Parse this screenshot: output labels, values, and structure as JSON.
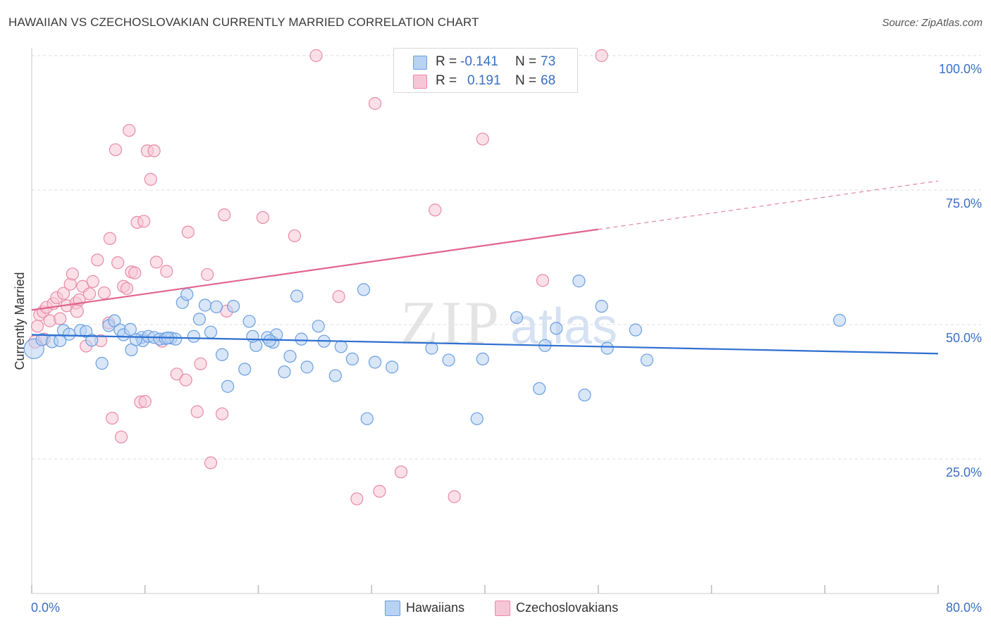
{
  "title": "HAWAIIAN VS CZECHOSLOVAKIAN CURRENTLY MARRIED CORRELATION CHART",
  "source": "Source: ZipAtlas.com",
  "watermark": {
    "zip": "ZIP",
    "atlas": "atlas"
  },
  "colors": {
    "blue_fill": "#b8d2f3",
    "blue_stroke": "#6a9fe0",
    "blue_line": "#2d6fd0",
    "pink_fill": "#f7c6d6",
    "pink_stroke": "#e98aa8",
    "pink_line": "#e0648c",
    "axis_text": "#3a6fc4",
    "grid": "#dddddd"
  },
  "legend": {
    "rows": [
      {
        "r_label": "R =",
        "r_value": "-0.141",
        "n_label": "N =",
        "n_value": "73",
        "series": "Hawaiians"
      },
      {
        "r_label": "R =",
        "r_value": "0.191",
        "n_label": "N =",
        "n_value": "68",
        "series": "Czechoslovakians"
      }
    ]
  },
  "bottom_legend": [
    "Hawaiians",
    "Czechoslovakians"
  ],
  "chart_data": {
    "type": "scatter",
    "xlabel": "",
    "ylabel": "Currently Married",
    "xlim": [
      0,
      80
    ],
    "ylim": [
      0,
      100
    ],
    "x_tick_labels": [
      "0.0%",
      "80.0%"
    ],
    "y_tick_labels": [
      "100.0%",
      "75.0%",
      "50.0%",
      "25.0%"
    ],
    "y_ticks": [
      100,
      75,
      50,
      25
    ],
    "grid": true,
    "legend_position": "top-center",
    "series": [
      {
        "name": "Hawaiians",
        "points": [
          [
            0.2,
            45.5
          ],
          [
            0.9,
            47.2
          ],
          [
            1.8,
            46.8
          ],
          [
            2.8,
            48.9
          ],
          [
            3.3,
            48.2
          ],
          [
            4.3,
            48.9
          ],
          [
            4.8,
            48.7
          ],
          [
            5.3,
            47.1
          ],
          [
            6.2,
            42.8
          ],
          [
            6.8,
            49.8
          ],
          [
            7.3,
            50.7
          ],
          [
            7.8,
            49.0
          ],
          [
            8.1,
            48.1
          ],
          [
            8.7,
            49.1
          ],
          [
            8.8,
            45.3
          ],
          [
            9.7,
            47.6
          ],
          [
            9.8,
            47.0
          ],
          [
            10.3,
            47.8
          ],
          [
            10.8,
            47.6
          ],
          [
            11.3,
            47.3
          ],
          [
            11.8,
            47.4
          ],
          [
            12.3,
            47.5
          ],
          [
            12.7,
            47.3
          ],
          [
            13.3,
            54.1
          ],
          [
            13.7,
            55.6
          ],
          [
            14.3,
            47.8
          ],
          [
            14.8,
            51.0
          ],
          [
            15.3,
            53.6
          ],
          [
            15.8,
            48.6
          ],
          [
            16.3,
            53.3
          ],
          [
            16.8,
            44.4
          ],
          [
            17.3,
            38.5
          ],
          [
            17.8,
            53.4
          ],
          [
            18.8,
            41.7
          ],
          [
            19.2,
            50.6
          ],
          [
            19.8,
            46.1
          ],
          [
            20.8,
            47.6
          ],
          [
            21.3,
            46.7
          ],
          [
            21.6,
            48.1
          ],
          [
            22.3,
            41.2
          ],
          [
            22.8,
            44.1
          ],
          [
            23.4,
            55.3
          ],
          [
            23.8,
            47.3
          ],
          [
            24.3,
            42.1
          ],
          [
            25.3,
            49.7
          ],
          [
            25.8,
            46.9
          ],
          [
            26.8,
            40.5
          ],
          [
            27.3,
            45.9
          ],
          [
            28.3,
            43.6
          ],
          [
            29.3,
            56.5
          ],
          [
            29.6,
            32.5
          ],
          [
            30.3,
            43.0
          ],
          [
            31.8,
            42.1
          ],
          [
            35.3,
            45.6
          ],
          [
            36.8,
            43.4
          ],
          [
            39.3,
            32.5
          ],
          [
            39.8,
            43.6
          ],
          [
            42.8,
            51.3
          ],
          [
            44.8,
            38.1
          ],
          [
            45.3,
            46.1
          ],
          [
            46.3,
            49.3
          ],
          [
            48.3,
            58.1
          ],
          [
            48.8,
            36.9
          ],
          [
            50.3,
            53.4
          ],
          [
            50.8,
            45.6
          ],
          [
            53.3,
            49.0
          ],
          [
            54.3,
            43.4
          ],
          [
            71.3,
            50.8
          ],
          [
            2.5,
            47.0
          ],
          [
            9.2,
            47.2
          ],
          [
            12.0,
            47.5
          ],
          [
            21.0,
            47.0
          ],
          [
            19.5,
            47.8
          ]
        ]
      },
      {
        "name": "Czechoslovakians",
        "points": [
          [
            0.3,
            46.8
          ],
          [
            0.7,
            51.8
          ],
          [
            1.0,
            52.4
          ],
          [
            1.3,
            53.2
          ],
          [
            1.6,
            50.7
          ],
          [
            1.9,
            53.9
          ],
          [
            2.2,
            55.0
          ],
          [
            2.5,
            51.1
          ],
          [
            2.8,
            55.8
          ],
          [
            3.1,
            53.5
          ],
          [
            3.4,
            57.5
          ],
          [
            3.6,
            59.4
          ],
          [
            3.9,
            54.0
          ],
          [
            4.2,
            54.6
          ],
          [
            4.5,
            57.1
          ],
          [
            4.8,
            46.0
          ],
          [
            5.1,
            55.7
          ],
          [
            5.4,
            58.0
          ],
          [
            5.8,
            62.0
          ],
          [
            6.1,
            47.0
          ],
          [
            6.4,
            55.9
          ],
          [
            6.8,
            50.3
          ],
          [
            6.9,
            66.0
          ],
          [
            7.1,
            32.6
          ],
          [
            7.4,
            82.5
          ],
          [
            7.6,
            61.5
          ],
          [
            7.9,
            29.1
          ],
          [
            8.1,
            57.1
          ],
          [
            8.4,
            56.7
          ],
          [
            8.6,
            86.1
          ],
          [
            8.8,
            59.8
          ],
          [
            9.1,
            59.6
          ],
          [
            9.3,
            69.0
          ],
          [
            9.6,
            35.6
          ],
          [
            9.9,
            69.2
          ],
          [
            10.0,
            35.7
          ],
          [
            10.2,
            82.3
          ],
          [
            10.5,
            77.0
          ],
          [
            10.8,
            82.3
          ],
          [
            11.0,
            61.6
          ],
          [
            11.5,
            46.9
          ],
          [
            11.9,
            59.9
          ],
          [
            12.8,
            40.8
          ],
          [
            13.6,
            39.7
          ],
          [
            13.8,
            67.2
          ],
          [
            14.6,
            33.8
          ],
          [
            14.9,
            42.7
          ],
          [
            15.5,
            59.3
          ],
          [
            15.8,
            24.3
          ],
          [
            16.8,
            33.4
          ],
          [
            17.0,
            70.4
          ],
          [
            17.2,
            52.5
          ],
          [
            20.4,
            69.9
          ],
          [
            23.2,
            66.5
          ],
          [
            25.1,
            100.0
          ],
          [
            27.1,
            55.2
          ],
          [
            28.7,
            17.6
          ],
          [
            30.3,
            91.1
          ],
          [
            30.7,
            19.0
          ],
          [
            32.6,
            22.6
          ],
          [
            35.6,
            71.3
          ],
          [
            37.3,
            18.0
          ],
          [
            39.8,
            84.5
          ],
          [
            45.1,
            58.2
          ],
          [
            50.3,
            100.0
          ],
          [
            4.0,
            52.5
          ],
          [
            1.1,
            47.3
          ],
          [
            0.5,
            49.7
          ]
        ]
      }
    ],
    "trend_lines": [
      {
        "series": "Hawaiians",
        "x": [
          0,
          80
        ],
        "y": [
          48.1,
          44.6
        ],
        "style": "solid"
      },
      {
        "series": "Czechoslovakians",
        "x": [
          0,
          50
        ],
        "y": [
          52.7,
          67.7
        ],
        "style": "solid"
      },
      {
        "series": "Czechoslovakians",
        "x": [
          50,
          80
        ],
        "y": [
          67.7,
          76.7
        ],
        "style": "dashed"
      }
    ]
  }
}
